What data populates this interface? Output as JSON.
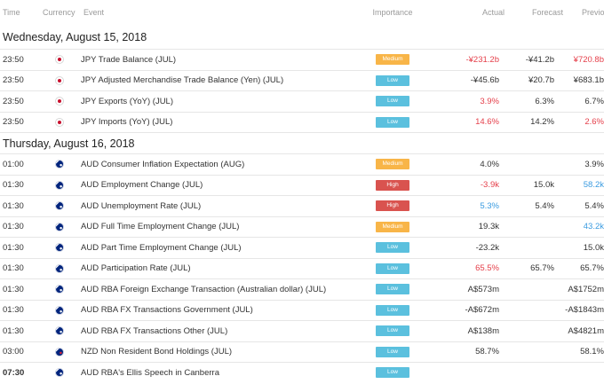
{
  "headers": {
    "time": "Time",
    "currency": "Currency",
    "event": "Event",
    "importance": "Importance",
    "actual": "Actual",
    "forecast": "Forecast",
    "previous": "Previous"
  },
  "groups": [
    {
      "date": "Wednesday, August 15, 2018",
      "rows": [
        {
          "time": "23:50",
          "flag": "japan-flag-icon",
          "event": "JPY Trade Balance (JUL)",
          "importance": "Medium",
          "actual": "-¥231.2b",
          "actual_color": "red",
          "forecast": "-¥41.2b",
          "previous": "¥720.8b",
          "previous_color": "red"
        },
        {
          "time": "23:50",
          "flag": "japan-flag-icon",
          "event": "JPY Adjusted Merchandise Trade Balance (Yen) (JUL)",
          "importance": "Low",
          "actual": "-¥45.6b",
          "actual_color": "",
          "forecast": "¥20.7b",
          "previous": "¥683.1b",
          "previous_color": ""
        },
        {
          "time": "23:50",
          "flag": "japan-flag-icon",
          "event": "JPY Exports (YoY) (JUL)",
          "importance": "Low",
          "actual": "3.9%",
          "actual_color": "red",
          "forecast": "6.3%",
          "previous": "6.7%",
          "previous_color": ""
        },
        {
          "time": "23:50",
          "flag": "japan-flag-icon",
          "event": "JPY Imports (YoY) (JUL)",
          "importance": "Low",
          "actual": "14.6%",
          "actual_color": "red",
          "forecast": "14.2%",
          "previous": "2.6%",
          "previous_color": "red"
        }
      ]
    },
    {
      "date": "Thursday, August 16, 2018",
      "rows": [
        {
          "time": "01:00",
          "flag": "australia-flag-icon",
          "event": "AUD Consumer Inflation Expectation (AUG)",
          "importance": "Medium",
          "actual": "4.0%",
          "actual_color": "",
          "forecast": "",
          "previous": "3.9%",
          "previous_color": ""
        },
        {
          "time": "01:30",
          "flag": "australia-flag-icon",
          "event": "AUD Employment Change (JUL)",
          "importance": "High",
          "actual": "-3.9k",
          "actual_color": "red",
          "forecast": "15.0k",
          "previous": "58.2k",
          "previous_color": "blue"
        },
        {
          "time": "01:30",
          "flag": "australia-flag-icon",
          "event": "AUD Unemployment Rate (JUL)",
          "importance": "High",
          "actual": "5.3%",
          "actual_color": "blue",
          "forecast": "5.4%",
          "previous": "5.4%",
          "previous_color": ""
        },
        {
          "time": "01:30",
          "flag": "australia-flag-icon",
          "event": "AUD Full Time Employment Change (JUL)",
          "importance": "Medium",
          "actual": "19.3k",
          "actual_color": "",
          "forecast": "",
          "previous": "43.2k",
          "previous_color": "blue"
        },
        {
          "time": "01:30",
          "flag": "australia-flag-icon",
          "event": "AUD Part Time Employment Change (JUL)",
          "importance": "Low",
          "actual": "-23.2k",
          "actual_color": "",
          "forecast": "",
          "previous": "15.0k",
          "previous_color": ""
        },
        {
          "time": "01:30",
          "flag": "australia-flag-icon",
          "event": "AUD Participation Rate (JUL)",
          "importance": "Low",
          "actual": "65.5%",
          "actual_color": "red",
          "forecast": "65.7%",
          "previous": "65.7%",
          "previous_color": ""
        },
        {
          "time": "01:30",
          "flag": "australia-flag-icon",
          "event": "AUD RBA Foreign Exchange Transaction (Australian dollar) (JUL)",
          "importance": "Low",
          "actual": "A$573m",
          "actual_color": "",
          "forecast": "",
          "previous": "A$1752m",
          "previous_color": ""
        },
        {
          "time": "01:30",
          "flag": "australia-flag-icon",
          "event": "AUD RBA FX Transactions Government (JUL)",
          "importance": "Low",
          "actual": "-A$672m",
          "actual_color": "",
          "forecast": "",
          "previous": "-A$1843m",
          "previous_color": ""
        },
        {
          "time": "01:30",
          "flag": "australia-flag-icon",
          "event": "AUD RBA FX Transactions Other (JUL)",
          "importance": "Low",
          "actual": "A$138m",
          "actual_color": "",
          "forecast": "",
          "previous": "A$4821m",
          "previous_color": ""
        },
        {
          "time": "03:00",
          "flag": "new-zealand-flag-icon",
          "event": "NZD Non Resident Bond Holdings (JUL)",
          "importance": "Low",
          "actual": "58.7%",
          "actual_color": "",
          "forecast": "",
          "previous": "58.1%",
          "previous_color": ""
        },
        {
          "time": "07:30",
          "flag": "australia-flag-icon",
          "event": "AUD RBA's Ellis Speech in Canberra",
          "importance": "Low",
          "actual": "",
          "actual_color": "",
          "forecast": "",
          "previous": "",
          "previous_color": "",
          "time_bold": true
        }
      ]
    }
  ],
  "colors": {
    "red": "#e5404b",
    "blue": "#3a9be0",
    "medium": "#f8b548",
    "low": "#5bc0de",
    "high": "#d9534f"
  }
}
